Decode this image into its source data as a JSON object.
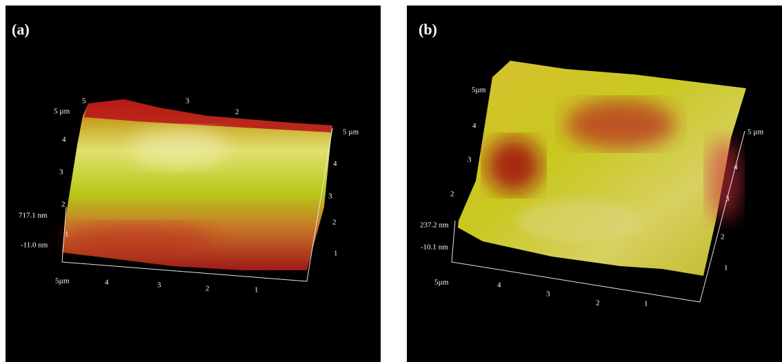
{
  "panels": [
    {
      "label": "(a)",
      "axis_labels": [
        "5",
        "3",
        "2",
        "5 µm",
        "4",
        "3",
        "2",
        "717.1 nm",
        "1",
        "-11.0 nm",
        "5µm",
        "4",
        "3",
        "2",
        "1",
        "5 µm",
        "4",
        "3",
        "2",
        "1"
      ]
    },
    {
      "label": "(b)",
      "axis_labels": [
        "5µm",
        "4",
        "3",
        "2",
        "237.2 nm",
        "-10.1 nm",
        "5µm",
        "4",
        "3",
        "2",
        "1",
        "5 µm",
        "4",
        "3",
        "2",
        "1"
      ]
    }
  ]
}
